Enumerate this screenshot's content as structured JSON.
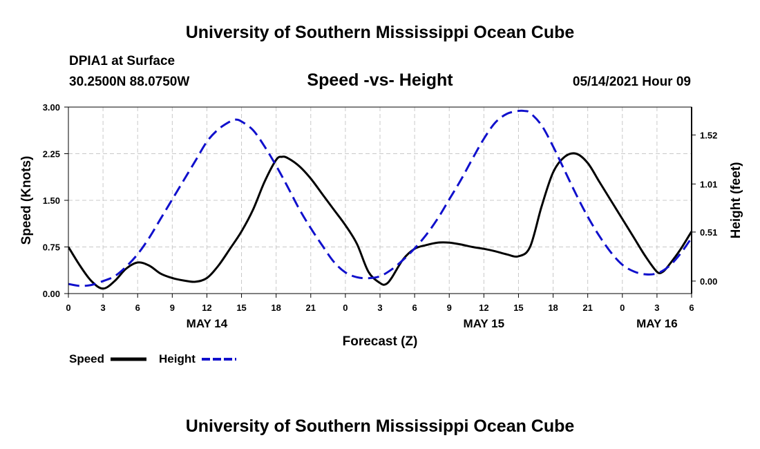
{
  "header": "University of Southern Mississippi Ocean Cube",
  "footer": "University of Southern Mississippi Ocean Cube",
  "station": {
    "name": "DPIA1 at Surface",
    "coords": "30.2500N  88.0750W"
  },
  "date_stamp": "05/14/2021 Hour 09",
  "colors": {
    "speed": "#000000",
    "height": "#1010cc",
    "grid": "#c8c8c8"
  },
  "chart_data": {
    "type": "line",
    "title": "Speed -vs- Height",
    "xlabel": "Forecast (Z)",
    "ylabel": "Speed (Knots)",
    "y2label": "Height (feet)",
    "x_unit": "forecast hours",
    "xlim": [
      0,
      54
    ],
    "ylim": [
      0,
      3.0
    ],
    "y2lim": [
      -0.13,
      1.81
    ],
    "x_ticks": [
      {
        "x": 0,
        "label": "0"
      },
      {
        "x": 3,
        "label": "3"
      },
      {
        "x": 6,
        "label": "6"
      },
      {
        "x": 9,
        "label": "9"
      },
      {
        "x": 12,
        "label": "12"
      },
      {
        "x": 15,
        "label": "15"
      },
      {
        "x": 18,
        "label": "18"
      },
      {
        "x": 21,
        "label": "21"
      },
      {
        "x": 24,
        "label": "0"
      },
      {
        "x": 27,
        "label": "3"
      },
      {
        "x": 30,
        "label": "6"
      },
      {
        "x": 33,
        "label": "9"
      },
      {
        "x": 36,
        "label": "12"
      },
      {
        "x": 39,
        "label": "15"
      },
      {
        "x": 42,
        "label": "18"
      },
      {
        "x": 45,
        "label": "21"
      },
      {
        "x": 48,
        "label": "0"
      },
      {
        "x": 51,
        "label": "3"
      },
      {
        "x": 54,
        "label": "6"
      }
    ],
    "y_ticks": [
      {
        "value": 0.0,
        "label": "0.00"
      },
      {
        "value": 0.75,
        "label": "0.75"
      },
      {
        "value": 1.5,
        "label": "1.50"
      },
      {
        "value": 2.25,
        "label": "2.25"
      },
      {
        "value": 3.0,
        "label": "3.00"
      }
    ],
    "y2_ticks": [
      {
        "value": 0.0,
        "label": "0.00"
      },
      {
        "value": 0.51,
        "label": "0.51"
      },
      {
        "value": 1.01,
        "label": "1.01"
      },
      {
        "value": 1.52,
        "label": "1.52"
      }
    ],
    "date_labels": [
      {
        "x": 12,
        "label": "MAY 14"
      },
      {
        "x": 36,
        "label": "MAY 15"
      },
      {
        "x": 51,
        "label": "MAY 16"
      }
    ],
    "legend": [
      {
        "name": "Speed",
        "style": "solid"
      },
      {
        "name": "Height",
        "style": "dashed"
      }
    ],
    "series": [
      {
        "name": "Speed",
        "axis": "left",
        "style": "solid",
        "x": [
          0,
          1,
          2,
          3,
          4,
          5,
          6,
          7,
          8,
          9,
          10,
          11,
          12,
          13,
          14,
          15,
          16,
          17,
          18,
          18.5,
          19,
          20,
          21,
          22,
          23,
          24,
          25,
          26,
          27,
          27.5,
          28,
          29,
          30,
          31,
          32,
          33,
          34,
          35,
          36,
          37,
          38,
          39,
          40,
          41,
          42,
          43,
          44,
          45,
          46,
          47,
          48,
          49,
          50,
          51,
          51.5,
          52,
          53,
          54
        ],
        "y": [
          0.75,
          0.45,
          0.2,
          0.08,
          0.2,
          0.4,
          0.5,
          0.45,
          0.32,
          0.25,
          0.21,
          0.19,
          0.25,
          0.45,
          0.72,
          1.0,
          1.35,
          1.8,
          2.15,
          2.2,
          2.18,
          2.05,
          1.85,
          1.6,
          1.35,
          1.1,
          0.8,
          0.35,
          0.17,
          0.15,
          0.25,
          0.55,
          0.72,
          0.78,
          0.82,
          0.82,
          0.79,
          0.75,
          0.72,
          0.68,
          0.63,
          0.6,
          0.75,
          1.4,
          1.95,
          2.2,
          2.25,
          2.1,
          1.8,
          1.5,
          1.2,
          0.9,
          0.6,
          0.35,
          0.35,
          0.45,
          0.7,
          1.0
        ]
      },
      {
        "name": "Height",
        "axis": "right",
        "style": "dashed",
        "x": [
          0,
          1,
          2,
          3,
          4,
          5,
          6,
          7,
          8,
          9,
          10,
          11,
          12,
          13,
          14,
          14.5,
          15,
          16,
          17,
          18,
          19,
          20,
          21,
          22,
          23,
          24,
          25,
          26,
          27,
          28,
          29,
          30,
          31,
          32,
          33,
          34,
          35,
          36,
          37,
          38,
          39,
          39.5,
          40,
          41,
          42,
          43,
          44,
          45,
          46,
          47,
          48,
          49,
          50,
          51,
          52,
          53,
          54
        ],
        "y": [
          -0.03,
          -0.05,
          -0.04,
          0.0,
          0.05,
          0.15,
          0.28,
          0.45,
          0.65,
          0.85,
          1.05,
          1.25,
          1.45,
          1.58,
          1.66,
          1.68,
          1.66,
          1.57,
          1.4,
          1.2,
          0.98,
          0.75,
          0.55,
          0.37,
          0.2,
          0.09,
          0.04,
          0.03,
          0.05,
          0.12,
          0.22,
          0.34,
          0.48,
          0.65,
          0.85,
          1.05,
          1.27,
          1.48,
          1.65,
          1.74,
          1.77,
          1.77,
          1.75,
          1.62,
          1.4,
          1.15,
          0.9,
          0.67,
          0.47,
          0.3,
          0.17,
          0.1,
          0.07,
          0.08,
          0.15,
          0.28,
          0.45
        ]
      }
    ]
  }
}
